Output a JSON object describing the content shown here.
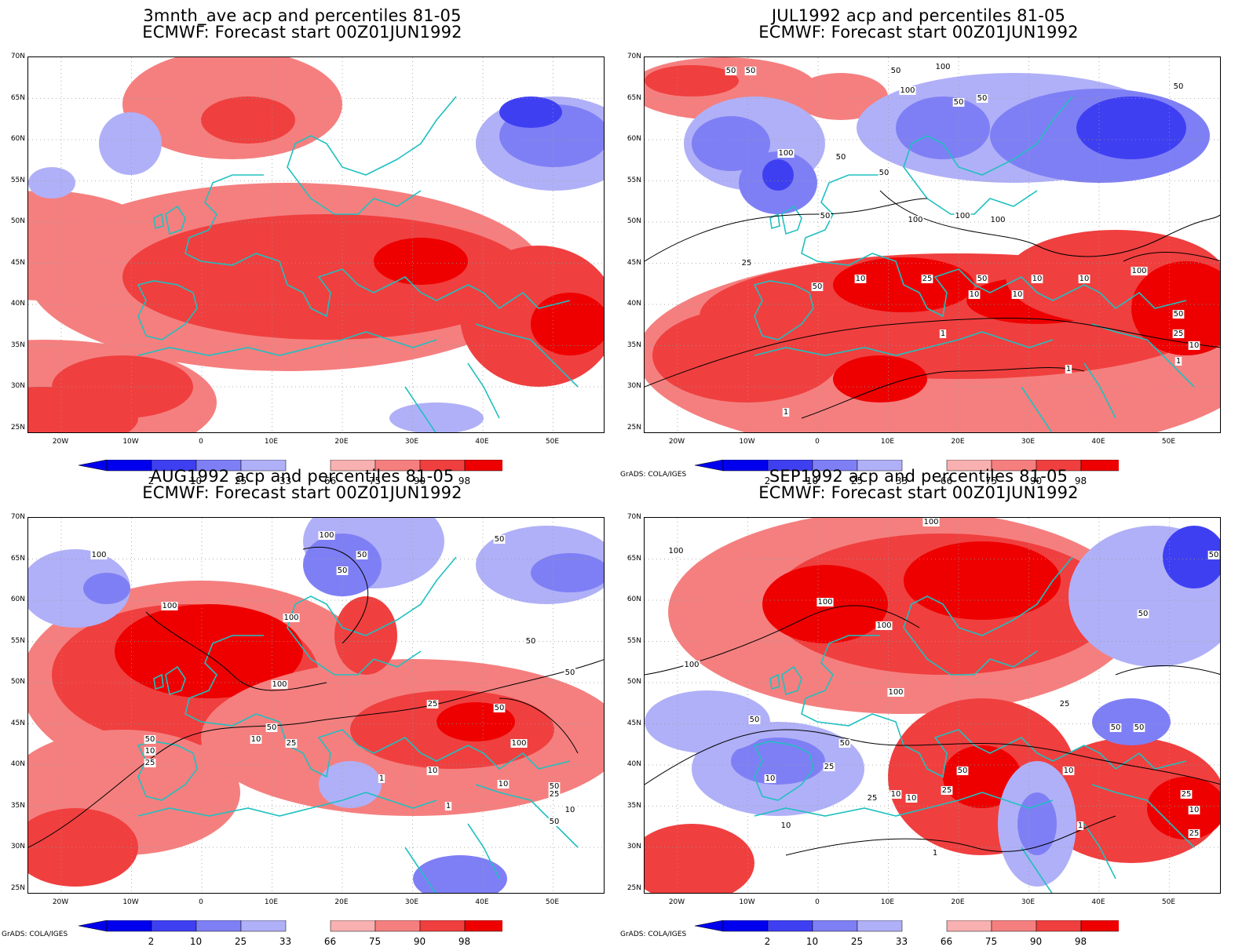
{
  "panels": [
    {
      "title_line1": "3mnth_ave acp and percentiles 81-05",
      "title_line2": "ECMWF: Forecast start 00Z01JUN1992"
    },
    {
      "title_line1": "JUL1992 acp and percentiles 81-05",
      "title_line2": "ECMWF: Forecast start 00Z01JUN1992"
    },
    {
      "title_line1": "AUG1992 acp and percentiles 81-05",
      "title_line2": "ECMWF: Forecast start 00Z01JUN1992"
    },
    {
      "title_line1": "SEP1992 acp and percentiles 81-05",
      "title_line2": "ECMWF: Forecast start 00Z01JUN1992"
    }
  ],
  "lat_labels": [
    "70N",
    "65N",
    "60N",
    "55N",
    "50N",
    "45N",
    "40N",
    "35N",
    "30N",
    "25N"
  ],
  "lon_labels": [
    "20W",
    "10W",
    "0",
    "10E",
    "20E",
    "30E",
    "40E",
    "50E"
  ],
  "colorbar": {
    "labels": [
      "2",
      "10",
      "25",
      "33",
      "66",
      "75",
      "90",
      "98"
    ],
    "colors": [
      "#0000ee",
      "#3f3ff2",
      "#7f7ff5",
      "#b0b0f8",
      "#ffffff",
      "#f8b0b0",
      "#f57f7f",
      "#f03f3f",
      "#ee0000"
    ]
  },
  "credit": "GrADS: COLA/IGES",
  "contour_labels": {
    "jul": [
      "50",
      "50",
      "100",
      "50",
      "100",
      "50",
      "50",
      "50",
      "100",
      "50",
      "100",
      "100",
      "100",
      "50",
      "50",
      "25",
      "50",
      "10",
      "25",
      "50",
      "10",
      "10",
      "10",
      "100",
      "10",
      "1",
      "50",
      "25",
      "10",
      "1",
      "1",
      "1"
    ],
    "aug": [
      "100",
      "100",
      "50",
      "50",
      "50",
      "100",
      "100",
      "50",
      "50",
      "25",
      "100",
      "50",
      "10",
      "25",
      "50",
      "10",
      "25",
      "10",
      "100",
      "50",
      "10",
      "1",
      "1",
      "50",
      "25",
      "10",
      "50"
    ],
    "sep": [
      "100",
      "100",
      "100",
      "100",
      "50",
      "100",
      "100",
      "50",
      "50",
      "25",
      "50",
      "25",
      "10",
      "10",
      "1",
      "25",
      "10",
      "50",
      "25",
      "50",
      "10",
      "10",
      "1",
      "25",
      "10",
      "25",
      "50"
    ]
  }
}
